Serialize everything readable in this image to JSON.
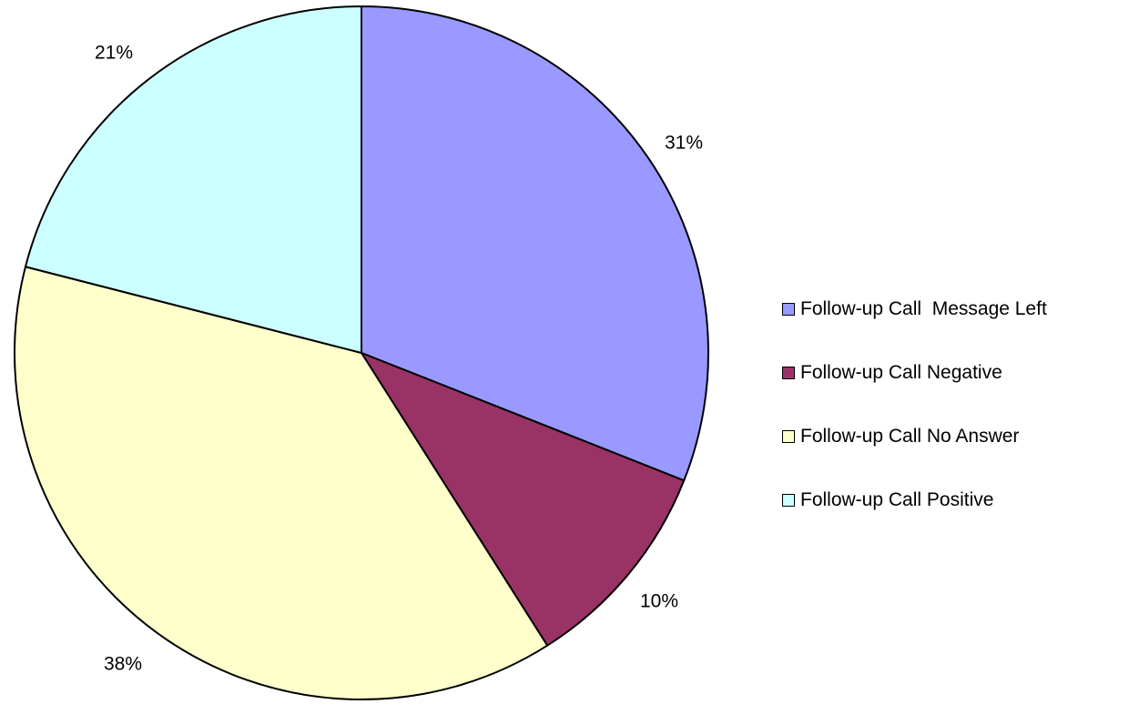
{
  "chart_data": {
    "type": "pie",
    "title": "",
    "categories": [
      "Follow-up Call  Message Left",
      "Follow-up Call Negative",
      "Follow-up Call No Answer",
      "Follow-up Call Positive"
    ],
    "values": [
      31,
      10,
      38,
      21
    ],
    "labels": [
      "31%",
      "10%",
      "38%",
      "21%"
    ],
    "colors": [
      "#9999ff",
      "#993366",
      "#ffffcc",
      "#ccffff"
    ],
    "start_angle": "12 o'clock",
    "direction": "clockwise",
    "legend_position": "right"
  }
}
